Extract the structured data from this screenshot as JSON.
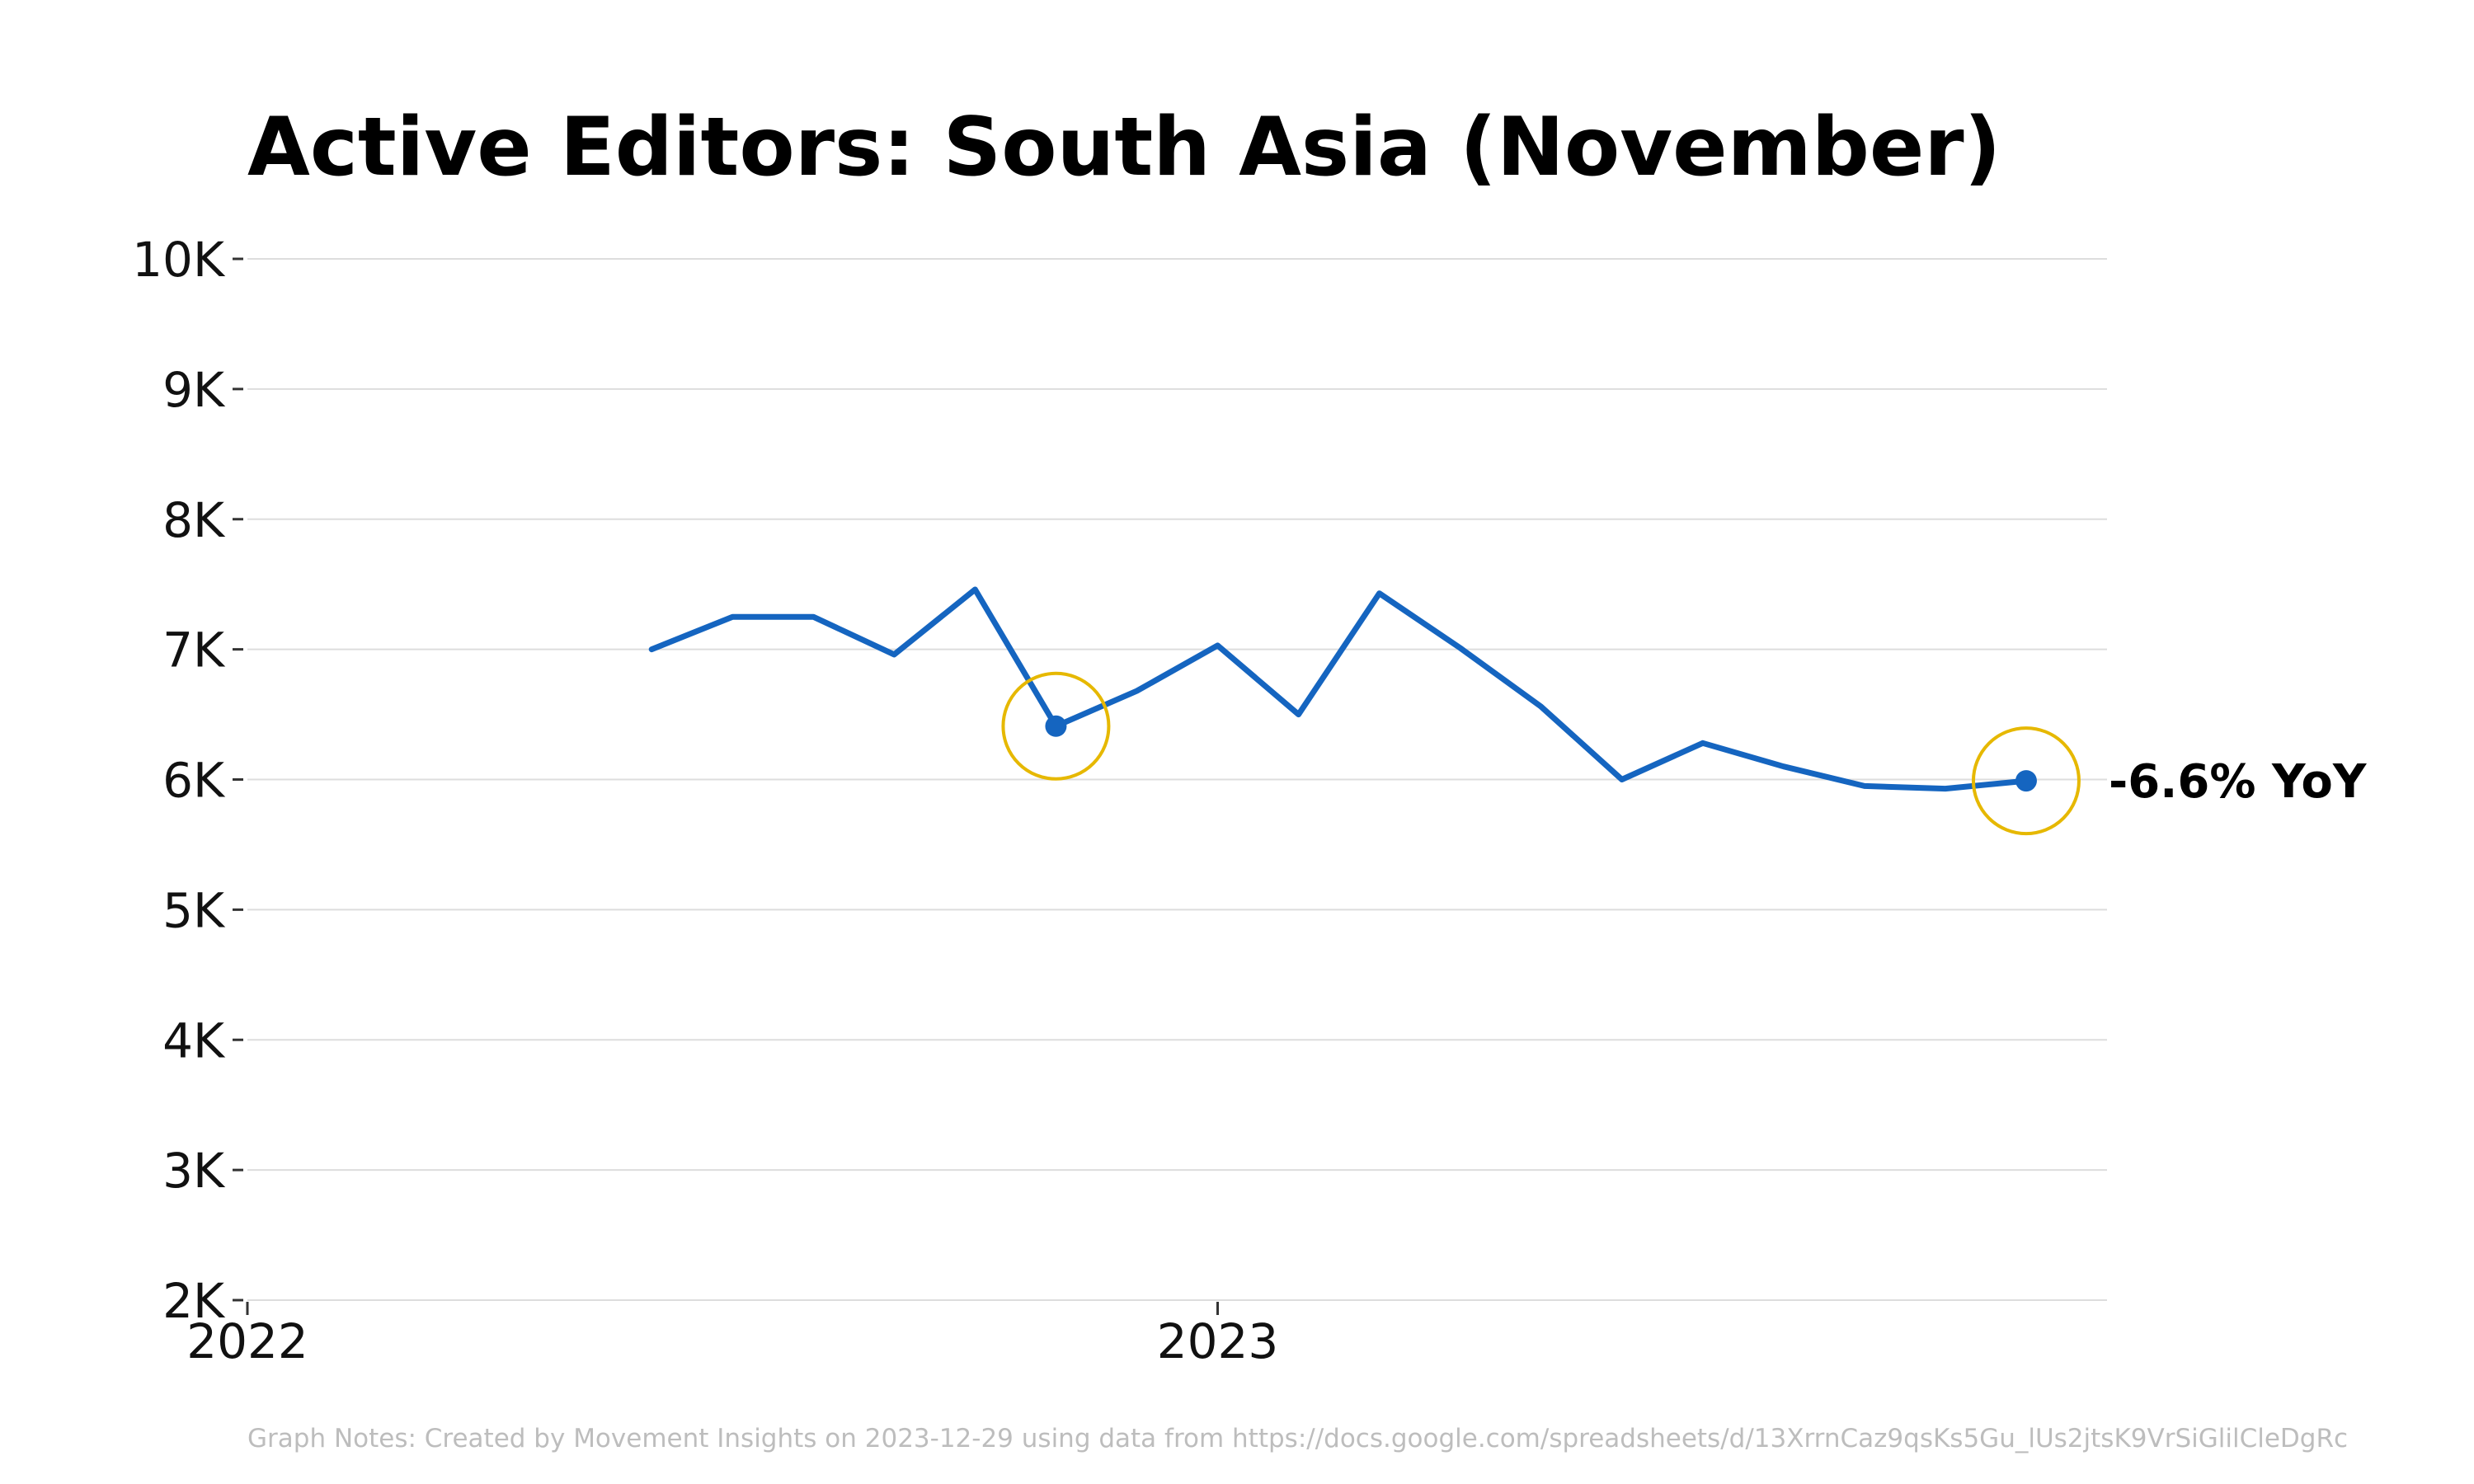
{
  "chart_data": {
    "type": "line",
    "title": "Active Editors: South Asia (November)",
    "xlabel": "",
    "ylabel": "",
    "ylim": [
      2000,
      10000
    ],
    "xlim": [
      "2022-01",
      "2023-12"
    ],
    "grid": true,
    "y_ticks": [
      {
        "value": 10000,
        "label": "10K"
      },
      {
        "value": 9000,
        "label": "9K"
      },
      {
        "value": 8000,
        "label": "8K"
      },
      {
        "value": 7000,
        "label": "7K"
      },
      {
        "value": 6000,
        "label": "6K"
      },
      {
        "value": 5000,
        "label": "5K"
      },
      {
        "value": 4000,
        "label": "4K"
      },
      {
        "value": 3000,
        "label": "3K"
      },
      {
        "value": 2000,
        "label": "2K"
      }
    ],
    "x_ticks": [
      {
        "value": "2022-01",
        "label": "2022"
      },
      {
        "value": "2023-01",
        "label": "2023"
      }
    ],
    "series": [
      {
        "color": "#1565c0",
        "x": [
          "2022-06",
          "2022-07",
          "2022-08",
          "2022-09",
          "2022-10",
          "2022-11",
          "2022-12",
          "2023-01",
          "2023-02",
          "2023-03",
          "2023-04",
          "2023-05",
          "2023-06",
          "2023-07",
          "2023-08",
          "2023-09",
          "2023-10",
          "2023-11"
        ],
        "values": [
          7000,
          7250,
          7250,
          6960,
          7460,
          6410,
          6680,
          7030,
          6500,
          7430,
          7010,
          6560,
          6000,
          6280,
          6100,
          5950,
          5930,
          5990
        ]
      }
    ],
    "highlights": [
      {
        "x": "2022-11",
        "value": 6410
      },
      {
        "x": "2023-11",
        "value": 5990
      }
    ],
    "highlight_color": "#e6b800",
    "annotation": {
      "x": "2023-11",
      "value": 5990,
      "text": "-6.6% YoY"
    }
  },
  "footer": {
    "note": "Graph Notes: Created by Movement Insights  on 2023-12-29 using data from https://docs.google.com/spreadsheets/d/13XrrnCaz9qsKs5Gu_lUs2jtsK9VrSiGlilCleDgRc"
  }
}
